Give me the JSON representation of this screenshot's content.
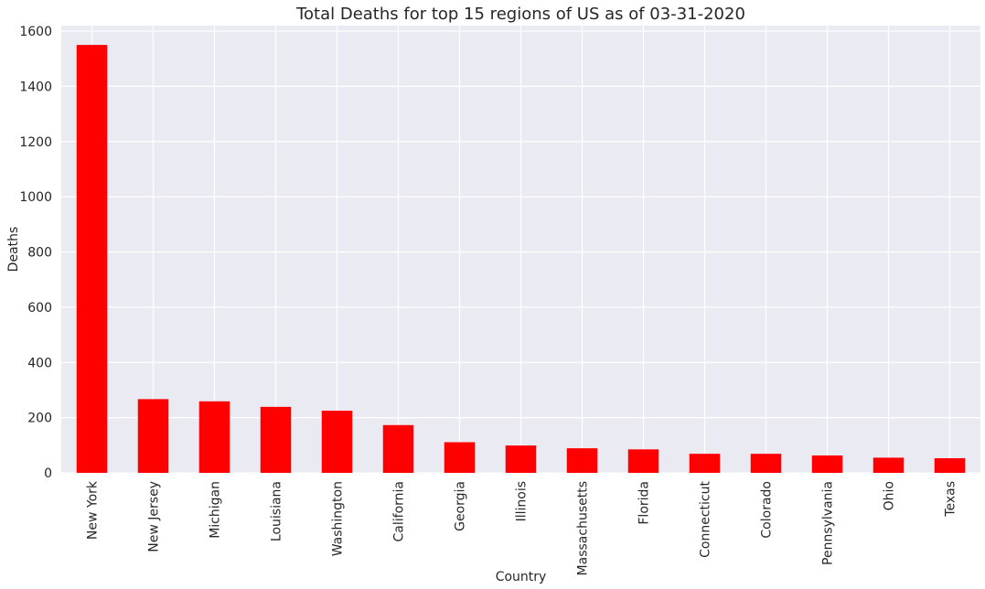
{
  "chart_data": {
    "type": "bar",
    "title": "Total Deaths for top 15 regions of US as of 03-31-2020",
    "xlabel": "Country",
    "ylabel": "Deaths",
    "categories": [
      "New York",
      "New Jersey",
      "Michigan",
      "Louisiana",
      "Washington",
      "California",
      "Georgia",
      "Illinois",
      "Massachusetts",
      "Florida",
      "Connecticut",
      "Colorado",
      "Pennsylvania",
      "Ohio",
      "Texas"
    ],
    "values": [
      1550,
      267,
      259,
      239,
      225,
      173,
      111,
      99,
      89,
      85,
      69,
      69,
      63,
      55,
      53
    ],
    "ylim": [
      0,
      1620
    ],
    "yticks": [
      0,
      200,
      400,
      600,
      800,
      1000,
      1200,
      1400,
      1600
    ],
    "grid": true,
    "colors": {
      "bar": "#ff0000",
      "plot_bg": "#eaeaf2",
      "grid": "#ffffff"
    }
  }
}
